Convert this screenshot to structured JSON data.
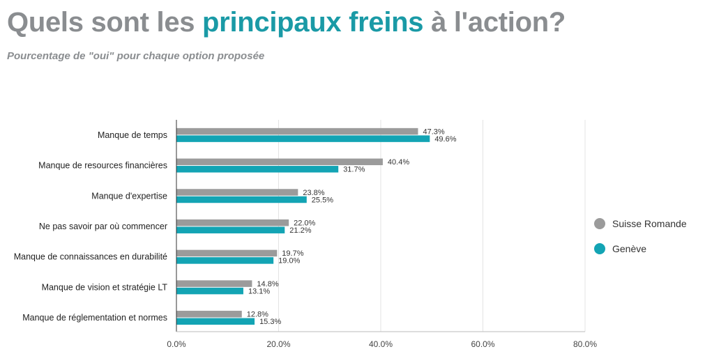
{
  "header": {
    "title_prefix": "Quels sont les",
    "title_accent": "principaux freins",
    "title_suffix": "à l'action?",
    "subtitle": "Pourcentage de \"oui\" pour chaque option proposée"
  },
  "colors": {
    "title": "#8a8d90",
    "accent": "#1a9aa6",
    "series_suisse_romande": "#9b9b9b",
    "series_geneve": "#13a4b4"
  },
  "chart_data": {
    "type": "bar",
    "orientation": "horizontal",
    "categories": [
      "Manque de temps",
      "Manque de resources financières",
      "Manque d'expertise",
      "Ne pas savoir par où commencer",
      "Manque de connaissances en durabilité",
      "Manque de vision et stratégie LT",
      "Manque de réglementation et normes"
    ],
    "series": [
      {
        "name": "Suisse Romande",
        "color": "#9b9b9b",
        "values": [
          47.3,
          40.4,
          23.8,
          22.0,
          19.7,
          14.8,
          12.8
        ],
        "labels": [
          "47.3%",
          "40.4%",
          "23.8%",
          "22.0%",
          "19.7%",
          "14.8%",
          "12.8%"
        ]
      },
      {
        "name": "Genève",
        "color": "#13a4b4",
        "values": [
          49.6,
          31.7,
          25.5,
          21.2,
          19.0,
          13.1,
          15.3
        ],
        "labels": [
          "49.6%",
          "31.7%",
          "25.5%",
          "21.2%",
          "19.0%",
          "13.1%",
          "15.3%"
        ]
      }
    ],
    "xlim": [
      0,
      80
    ],
    "xticks": [
      0,
      20,
      40,
      60,
      80
    ],
    "xtick_labels": [
      "0.0%",
      "20.0%",
      "40.0%",
      "60.0%",
      "80.0%"
    ],
    "grid": true,
    "legend_position": "right"
  }
}
